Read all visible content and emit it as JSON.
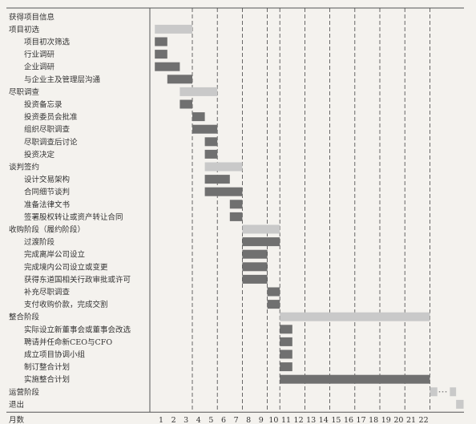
{
  "chart_data": {
    "type": "gantt",
    "x_axis_label": "月数",
    "x_ticks": [
      1,
      2,
      3,
      4,
      5,
      6,
      7,
      8,
      9,
      10,
      11,
      12,
      13,
      14,
      15,
      16,
      17,
      18,
      19,
      20,
      21,
      22
    ],
    "phase_color": "#c9c9c9",
    "task_color": "#707070",
    "rows": [
      {
        "label": "获得项目信息",
        "level": 0,
        "bars": []
      },
      {
        "label": "项目初选",
        "level": 0,
        "bars": [
          {
            "start": 0.5,
            "end": 3.5,
            "kind": "phase"
          }
        ]
      },
      {
        "label": "项目初次筛选",
        "level": 1,
        "bars": [
          {
            "start": 0.5,
            "end": 1.5,
            "kind": "task"
          }
        ]
      },
      {
        "label": "行业调研",
        "level": 1,
        "bars": [
          {
            "start": 0.5,
            "end": 1.5,
            "kind": "task"
          }
        ]
      },
      {
        "label": "企业调研",
        "level": 1,
        "bars": [
          {
            "start": 0.5,
            "end": 2.5,
            "kind": "task"
          }
        ]
      },
      {
        "label": "与企业主及管理层沟通",
        "level": 1,
        "bars": [
          {
            "start": 1.5,
            "end": 3.5,
            "kind": "task"
          }
        ]
      },
      {
        "label": "尽职调查",
        "level": 0,
        "bars": [
          {
            "start": 2.5,
            "end": 5.5,
            "kind": "phase"
          }
        ]
      },
      {
        "label": "投资备忘录",
        "level": 1,
        "bars": [
          {
            "start": 2.5,
            "end": 3.5,
            "kind": "task"
          }
        ]
      },
      {
        "label": "投资委员会批准",
        "level": 1,
        "bars": [
          {
            "start": 3.5,
            "end": 4.5,
            "kind": "task"
          }
        ]
      },
      {
        "label": "组织尽职调查",
        "level": 1,
        "bars": [
          {
            "start": 3.5,
            "end": 5.5,
            "kind": "task"
          }
        ]
      },
      {
        "label": "尽职调查后讨论",
        "level": 1,
        "bars": [
          {
            "start": 4.5,
            "end": 5.5,
            "kind": "task"
          }
        ]
      },
      {
        "label": "投资决定",
        "level": 1,
        "bars": [
          {
            "start": 4.5,
            "end": 5.5,
            "kind": "task"
          }
        ]
      },
      {
        "label": "谈判签约",
        "level": 0,
        "bars": [
          {
            "start": 4.5,
            "end": 7.5,
            "kind": "phase"
          }
        ]
      },
      {
        "label": "设计交易架构",
        "level": 1,
        "bars": [
          {
            "start": 4.5,
            "end": 6.5,
            "kind": "task"
          }
        ]
      },
      {
        "label": "合同细节谈判",
        "level": 1,
        "bars": [
          {
            "start": 4.5,
            "end": 7.5,
            "kind": "task"
          }
        ]
      },
      {
        "label": "准备法律文书",
        "level": 1,
        "bars": [
          {
            "start": 6.5,
            "end": 7.5,
            "kind": "task"
          }
        ]
      },
      {
        "label": "签署股权转让或资产转让合同",
        "level": 1,
        "bars": [
          {
            "start": 6.5,
            "end": 7.5,
            "kind": "task"
          }
        ]
      },
      {
        "label": "收购阶段（履约阶段）",
        "level": 0,
        "bars": [
          {
            "start": 7.5,
            "end": 10.5,
            "kind": "phase"
          }
        ]
      },
      {
        "label": "过渡阶段",
        "level": 1,
        "bars": [
          {
            "start": 7.5,
            "end": 10.5,
            "kind": "task"
          }
        ]
      },
      {
        "label": "完成离岸公司设立",
        "level": 1,
        "bars": [
          {
            "start": 7.5,
            "end": 9.5,
            "kind": "task"
          }
        ]
      },
      {
        "label": "完成境内公司设立或变更",
        "level": 1,
        "bars": [
          {
            "start": 7.5,
            "end": 9.5,
            "kind": "task"
          }
        ]
      },
      {
        "label": "获得东道国相关行政审批或许可",
        "level": 1,
        "bars": [
          {
            "start": 7.5,
            "end": 9.5,
            "kind": "task"
          }
        ]
      },
      {
        "label": "补充尽职调查",
        "level": 1,
        "bars": [
          {
            "start": 9.5,
            "end": 10.5,
            "kind": "task"
          }
        ]
      },
      {
        "label": "支付收购价款，完成交割",
        "level": 1,
        "bars": [
          {
            "start": 9.5,
            "end": 10.5,
            "kind": "task"
          }
        ]
      },
      {
        "label": "整合阶段",
        "level": 0,
        "bars": [
          {
            "start": 10.5,
            "end": 22.5,
            "kind": "phase"
          }
        ]
      },
      {
        "label": "实际设立新董事会或董事会改选",
        "level": 1,
        "bars": [
          {
            "start": 10.5,
            "end": 11.5,
            "kind": "task"
          }
        ]
      },
      {
        "label": "聘请并任命新CEO与CFO",
        "level": 1,
        "bars": [
          {
            "start": 10.5,
            "end": 11.5,
            "kind": "task"
          }
        ]
      },
      {
        "label": "成立项目协调小组",
        "level": 1,
        "bars": [
          {
            "start": 10.5,
            "end": 11.5,
            "kind": "task"
          }
        ]
      },
      {
        "label": "制订整合计划",
        "level": 1,
        "bars": [
          {
            "start": 10.5,
            "end": 11.5,
            "kind": "task"
          }
        ]
      },
      {
        "label": "实施整合计划",
        "level": 1,
        "bars": [
          {
            "start": 10.5,
            "end": 22.5,
            "kind": "task"
          }
        ]
      },
      {
        "label": "运营阶段",
        "level": 0,
        "bars": [
          {
            "start": 22.5,
            "end": 23.1,
            "kind": "phase"
          },
          {
            "start": 24.1,
            "end": 24.6,
            "kind": "phase"
          }
        ],
        "dotted_gap": [
          23.1,
          24.1
        ]
      },
      {
        "label": "退出",
        "level": 0,
        "bars": [
          {
            "start": 24.6,
            "end": 25.2,
            "kind": "phase"
          }
        ]
      }
    ]
  }
}
